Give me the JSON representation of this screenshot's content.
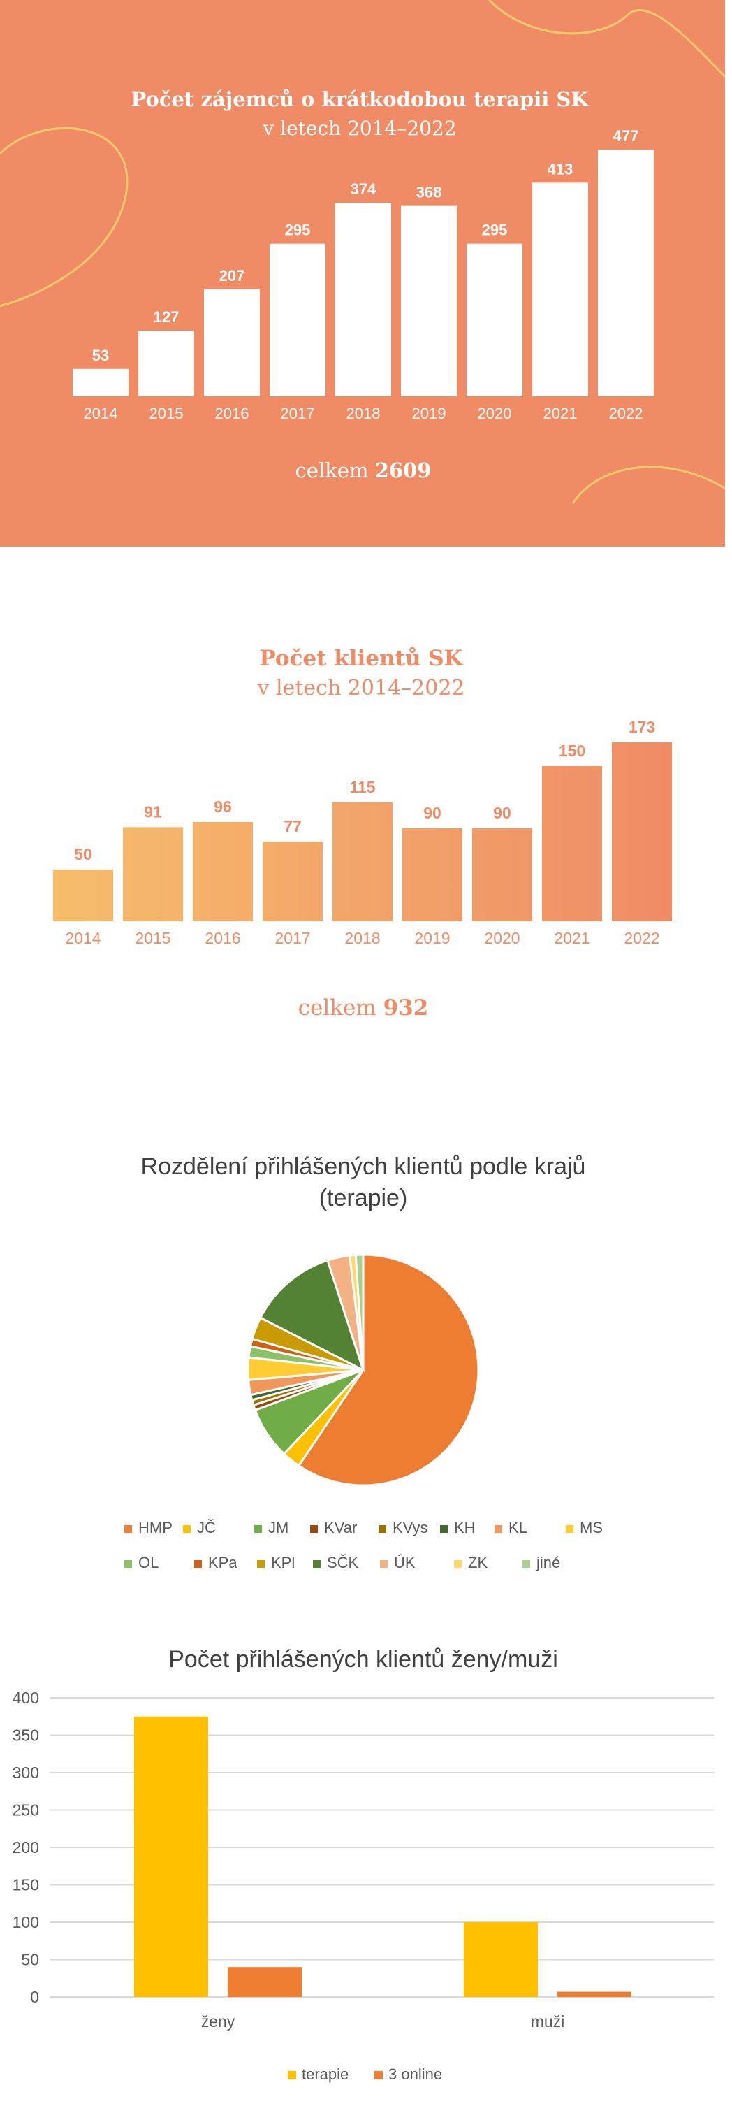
{
  "chart_data": [
    {
      "type": "bar",
      "title": "Počet zájemců o krátkodobou terapii SK",
      "subtitle": "v letech 2014–2022",
      "categories": [
        "2014",
        "2015",
        "2016",
        "2017",
        "2018",
        "2019",
        "2020",
        "2021",
        "2022"
      ],
      "values": [
        53,
        127,
        207,
        295,
        374,
        368,
        295,
        413,
        477
      ],
      "total_prefix": "celkem",
      "total_value": "2609",
      "colors": {
        "background": "#ef8c66",
        "bars": "#ffffff",
        "decor": "#f5c96b"
      }
    },
    {
      "type": "bar",
      "title": "Počet klientů SK",
      "subtitle": "v letech 2014–2022",
      "categories": [
        "2014",
        "2015",
        "2016",
        "2017",
        "2018",
        "2019",
        "2020",
        "2021",
        "2022"
      ],
      "values": [
        50,
        91,
        96,
        77,
        115,
        90,
        90,
        150,
        173
      ],
      "total_prefix": "celkem",
      "total_value": "932",
      "colors": {
        "gradient_start": "#f6bd6c",
        "gradient_end": "#ef8c66",
        "text": "#ef8c66"
      }
    },
    {
      "type": "pie",
      "title": "Rozdělení přihlášených klientů podle krajů (terapie)",
      "categories": [
        "HMP",
        "JČ",
        "JM",
        "KVar",
        "KVys",
        "KH",
        "KL",
        "MS",
        "OL",
        "KPa",
        "KPl",
        "SČK",
        "ÚK",
        "ZK",
        "jiné"
      ],
      "values": [
        57.0,
        2.5,
        7.0,
        0.7,
        0.7,
        0.7,
        2.0,
        3.0,
        1.5,
        1.0,
        3.0,
        12.0,
        3.0,
        0.8,
        1.0
      ],
      "colors": [
        "#ed7d31",
        "#ffc000",
        "#70ad47",
        "#9e480e",
        "#997300",
        "#43682b",
        "#f1975a",
        "#ffcd33",
        "#8cc168",
        "#d26012",
        "#c99b00",
        "#548235",
        "#f4b183",
        "#ffd966",
        "#a9d18e"
      ],
      "legend_position": "bottom"
    },
    {
      "type": "bar",
      "title": "Počet přihlášených klientů ženy/muži",
      "categories": [
        "ženy",
        "muži"
      ],
      "series": [
        {
          "name": "terapie",
          "values": [
            375,
            100
          ],
          "color": "#ffc000"
        },
        {
          "name": "3 online",
          "values": [
            40,
            7
          ],
          "color": "#ed7d31"
        }
      ],
      "yticks": [
        "0",
        "50",
        "100",
        "150",
        "200",
        "250",
        "300",
        "350",
        "400"
      ],
      "ylim": [
        0,
        400
      ],
      "grid": true,
      "legend_position": "bottom"
    }
  ]
}
